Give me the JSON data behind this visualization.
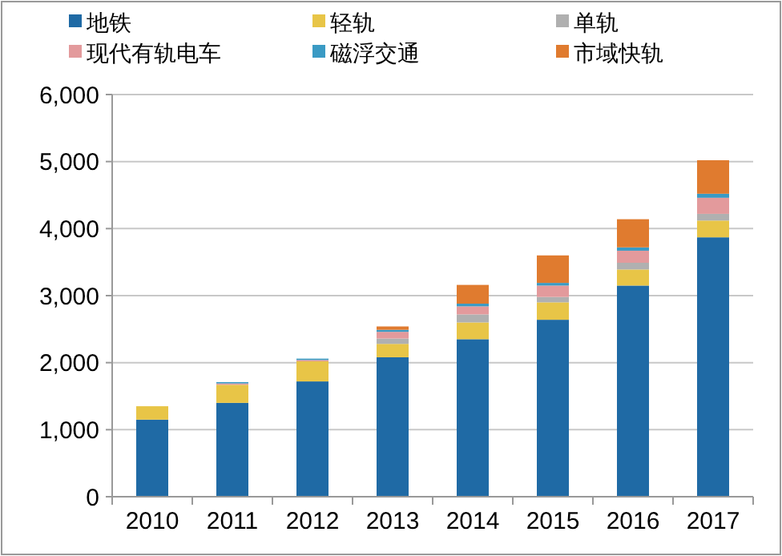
{
  "chart_data": {
    "type": "bar",
    "stacked": true,
    "categories": [
      "2010",
      "2011",
      "2012",
      "2013",
      "2014",
      "2015",
      "2016",
      "2017"
    ],
    "series": [
      {
        "name": "地铁",
        "color": "#1f6aa5",
        "values": [
          1150,
          1400,
          1720,
          2080,
          2350,
          2640,
          3150,
          3870
        ]
      },
      {
        "name": "轻轨",
        "color": "#e8c547",
        "values": [
          200,
          270,
          300,
          200,
          250,
          260,
          240,
          250
        ]
      },
      {
        "name": "单轨",
        "color": "#b0b0b0",
        "values": [
          0,
          0,
          0,
          80,
          120,
          80,
          100,
          100
        ]
      },
      {
        "name": "现代有轨电车",
        "color": "#e39a9c",
        "values": [
          0,
          20,
          20,
          100,
          120,
          170,
          180,
          240
        ]
      },
      {
        "name": "磁浮交通",
        "color": "#3a9ac4",
        "values": [
          0,
          20,
          20,
          30,
          40,
          40,
          50,
          60
        ]
      },
      {
        "name": "市域快轨",
        "color": "#e07b2f",
        "values": [
          0,
          0,
          0,
          50,
          280,
          410,
          420,
          500
        ]
      }
    ],
    "ylim": [
      0,
      6000
    ],
    "yticks": [
      {
        "value": 0,
        "label": "0"
      },
      {
        "value": 1000,
        "label": "1,000"
      },
      {
        "value": 2000,
        "label": "2,000"
      },
      {
        "value": 3000,
        "label": "3,000"
      },
      {
        "value": 4000,
        "label": "4,000"
      },
      {
        "value": 5000,
        "label": "5,000"
      },
      {
        "value": 6000,
        "label": "6,000"
      }
    ],
    "grid": "y",
    "legend": "top"
  }
}
